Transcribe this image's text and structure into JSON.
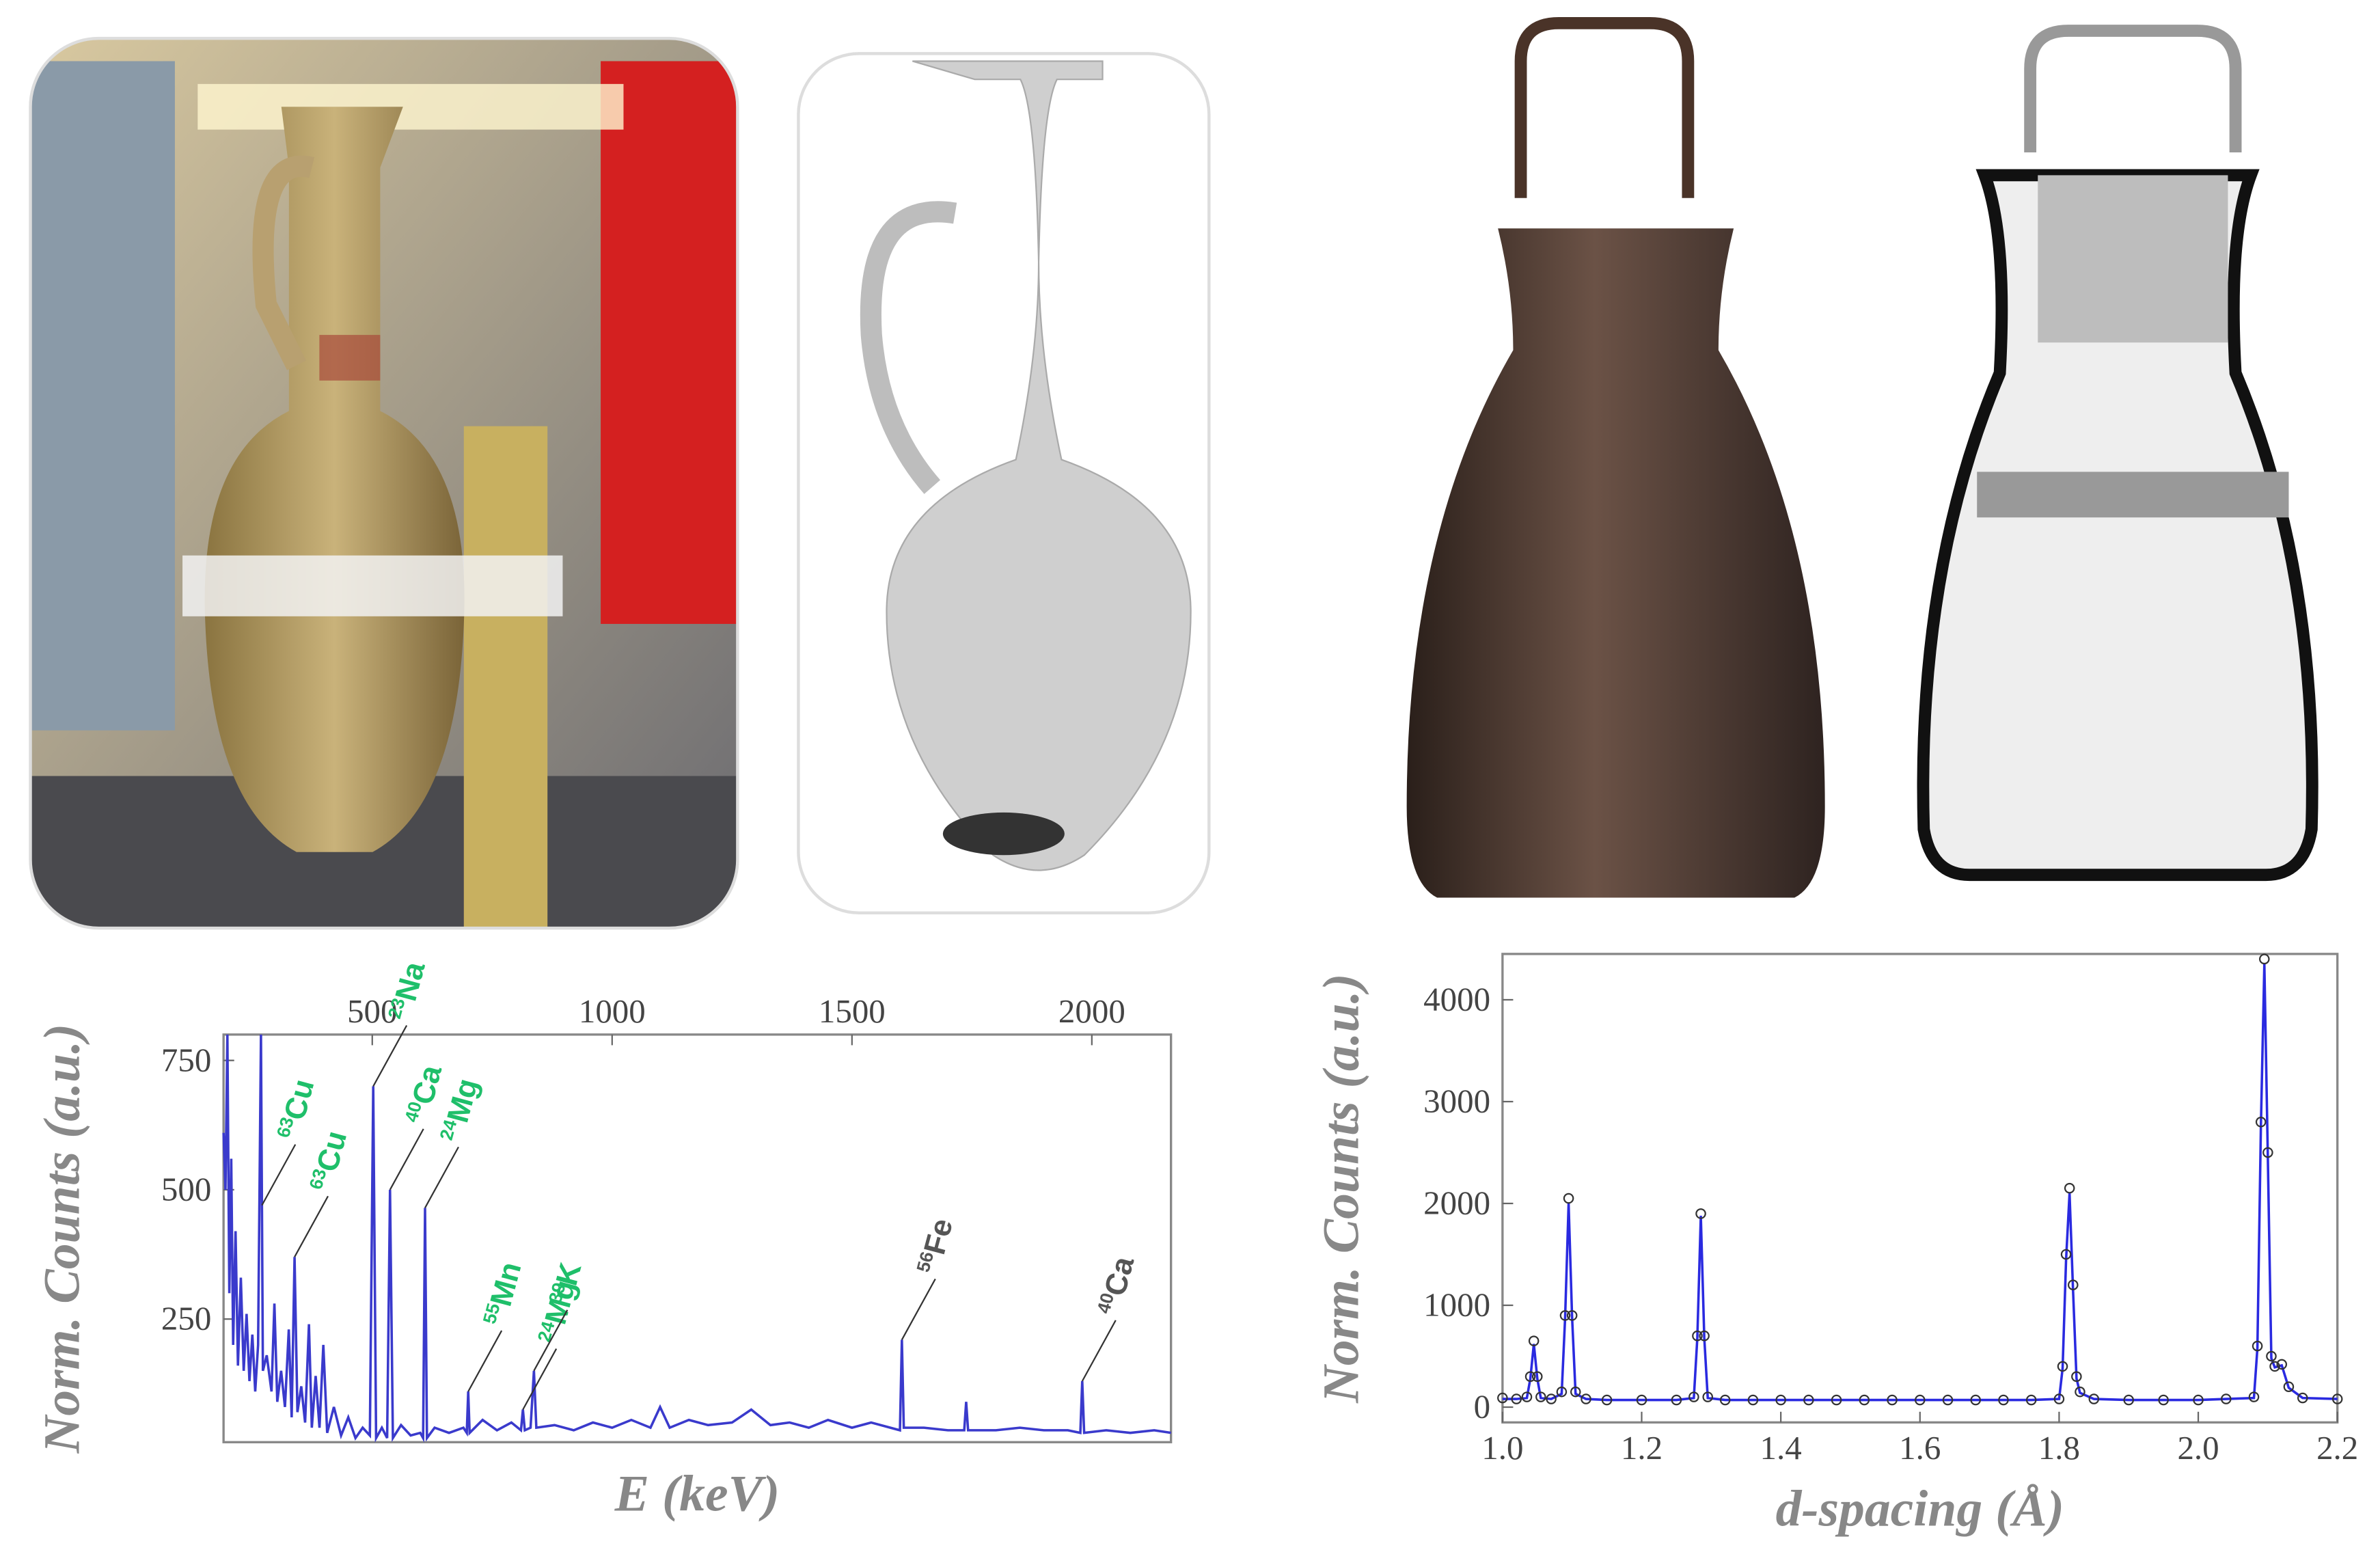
{
  "chart_data": [
    {
      "type": "line",
      "xlabel": "E (keV)",
      "ylabel": "Norm. Counts (a.u.)",
      "xtick_side": "top",
      "xlim": [
        190,
        2165
      ],
      "ylim": [
        12,
        800
      ],
      "xticks": [
        500,
        1000,
        1500,
        2000
      ],
      "yticks": [
        250,
        500,
        750
      ],
      "x": [
        190,
        194,
        198,
        202,
        206,
        210,
        215,
        220,
        226,
        232,
        238,
        244,
        250,
        256,
        262,
        268,
        272,
        280,
        290,
        296,
        302,
        310,
        318,
        326,
        332,
        338,
        344,
        352,
        360,
        368,
        374,
        382,
        390,
        398,
        406,
        420,
        435,
        450,
        465,
        480,
        495,
        502,
        508,
        520,
        531,
        537,
        543,
        560,
        580,
        600,
        606,
        610,
        614,
        630,
        660,
        690,
        697,
        700,
        703,
        730,
        760,
        790,
        810,
        814,
        818,
        830,
        837,
        842,
        880,
        920,
        960,
        1000,
        1040,
        1080,
        1100,
        1120,
        1160,
        1200,
        1250,
        1290,
        1330,
        1370,
        1410,
        1450,
        1500,
        1540,
        1580,
        1600,
        1604,
        1608,
        1650,
        1700,
        1734,
        1738,
        1742,
        1800,
        1850,
        1900,
        1950,
        1976,
        1980,
        1984,
        2030,
        2080,
        2130,
        2165
      ],
      "series": [
        {
          "color": "#3a3acc",
          "values": [
            610,
            500,
            800,
            300,
            560,
            200,
            420,
            160,
            330,
            150,
            260,
            130,
            220,
            110,
            200,
            800,
            150,
            180,
            110,
            280,
            90,
            150,
            80,
            230,
            60,
            370,
            70,
            120,
            50,
            240,
            40,
            140,
            40,
            200,
            30,
            80,
            25,
            60,
            20,
            40,
            25,
            700,
            20,
            40,
            20,
            500,
            20,
            45,
            25,
            30,
            20,
            465,
            20,
            40,
            30,
            40,
            30,
            110,
            30,
            55,
            35,
            50,
            35,
            75,
            35,
            40,
            150,
            40,
            45,
            35,
            50,
            40,
            55,
            40,
            80,
            40,
            55,
            45,
            50,
            75,
            45,
            50,
            40,
            55,
            40,
            50,
            40,
            35,
            210,
            40,
            40,
            35,
            35,
            90,
            35,
            35,
            40,
            35,
            35,
            30,
            130,
            30,
            35,
            30,
            35,
            30
          ]
        }
      ],
      "annotations": [
        {
          "x": 270,
          "y": 470,
          "mass": "63",
          "element": "Cu",
          "color": "#1fbf6a"
        },
        {
          "x": 338,
          "y": 370,
          "mass": "63",
          "element": "Cu",
          "color": "#1fbf6a"
        },
        {
          "x": 502,
          "y": 700,
          "mass": "23",
          "element": "Na",
          "color": "#1fbf6a"
        },
        {
          "x": 537,
          "y": 500,
          "mass": "40",
          "element": "Ca",
          "color": "#1fbf6a"
        },
        {
          "x": 610,
          "y": 465,
          "mass": "24",
          "element": "Mg",
          "color": "#1fbf6a"
        },
        {
          "x": 700,
          "y": 110,
          "mass": "55",
          "element": "Mn",
          "color": "#1fbf6a"
        },
        {
          "x": 814,
          "y": 75,
          "mass": "24",
          "element": "Mg",
          "color": "#1fbf6a"
        },
        {
          "x": 837,
          "y": 150,
          "mass": "39",
          "element": "K",
          "color": "#1fbf6a"
        },
        {
          "x": 1604,
          "y": 210,
          "mass": "56",
          "element": "Fe",
          "color": "#555555"
        },
        {
          "x": 1980,
          "y": 130,
          "mass": "40",
          "element": "Ca",
          "color": "#555555"
        }
      ]
    },
    {
      "type": "line",
      "xlabel": "d-spacing (Å)",
      "ylabel": "Norm. Counts (a.u.)",
      "xtick_side": "bottom",
      "xlim": [
        1.0,
        2.2
      ],
      "ylim": [
        -150,
        4450
      ],
      "xticks": [
        {
          "value": 1,
          "label": "1.0"
        },
        1.2,
        1.4,
        1.6,
        1.8,
        {
          "value": 2,
          "label": "2.0"
        },
        2.2
      ],
      "yticks": [
        0,
        1000,
        2000,
        3000,
        4000
      ],
      "x": [
        1.0,
        1.02,
        1.035,
        1.04,
        1.045,
        1.05,
        1.055,
        1.07,
        1.085,
        1.09,
        1.095,
        1.1,
        1.105,
        1.12,
        1.15,
        1.2,
        1.25,
        1.275,
        1.28,
        1.285,
        1.29,
        1.295,
        1.32,
        1.36,
        1.4,
        1.44,
        1.48,
        1.52,
        1.56,
        1.6,
        1.64,
        1.68,
        1.72,
        1.76,
        1.8,
        1.805,
        1.81,
        1.815,
        1.82,
        1.825,
        1.83,
        1.85,
        1.9,
        1.95,
        2.0,
        2.04,
        2.08,
        2.085,
        2.09,
        2.095,
        2.1,
        2.105,
        2.11,
        2.12,
        2.13,
        2.15,
        2.2
      ],
      "series": [
        {
          "color": "#2a2ae0",
          "values": [
            80,
            80,
            90,
            280,
            620,
            280,
            90,
            80,
            130,
            880,
            2000,
            880,
            130,
            80,
            70,
            70,
            70,
            90,
            680,
            1880,
            680,
            90,
            70,
            70,
            70,
            70,
            70,
            70,
            70,
            70,
            70,
            70,
            70,
            70,
            80,
            380,
            1450,
            2100,
            1150,
            280,
            140,
            80,
            70,
            70,
            70,
            80,
            90,
            580,
            2750,
            4350,
            2450,
            480,
            390,
            410,
            190,
            90,
            80
          ]
        },
        {
          "color": "#333333",
          "marker": "circle",
          "values": [
            90,
            80,
            100,
            300,
            650,
            300,
            100,
            80,
            150,
            900,
            2050,
            900,
            150,
            80,
            70,
            70,
            70,
            100,
            700,
            1900,
            700,
            100,
            70,
            70,
            70,
            70,
            70,
            70,
            70,
            70,
            70,
            70,
            70,
            70,
            80,
            400,
            1500,
            2150,
            1200,
            300,
            150,
            80,
            70,
            70,
            70,
            80,
            100,
            600,
            2800,
            4400,
            2500,
            500,
            400,
            420,
            200,
            90,
            80
          ]
        }
      ]
    }
  ]
}
